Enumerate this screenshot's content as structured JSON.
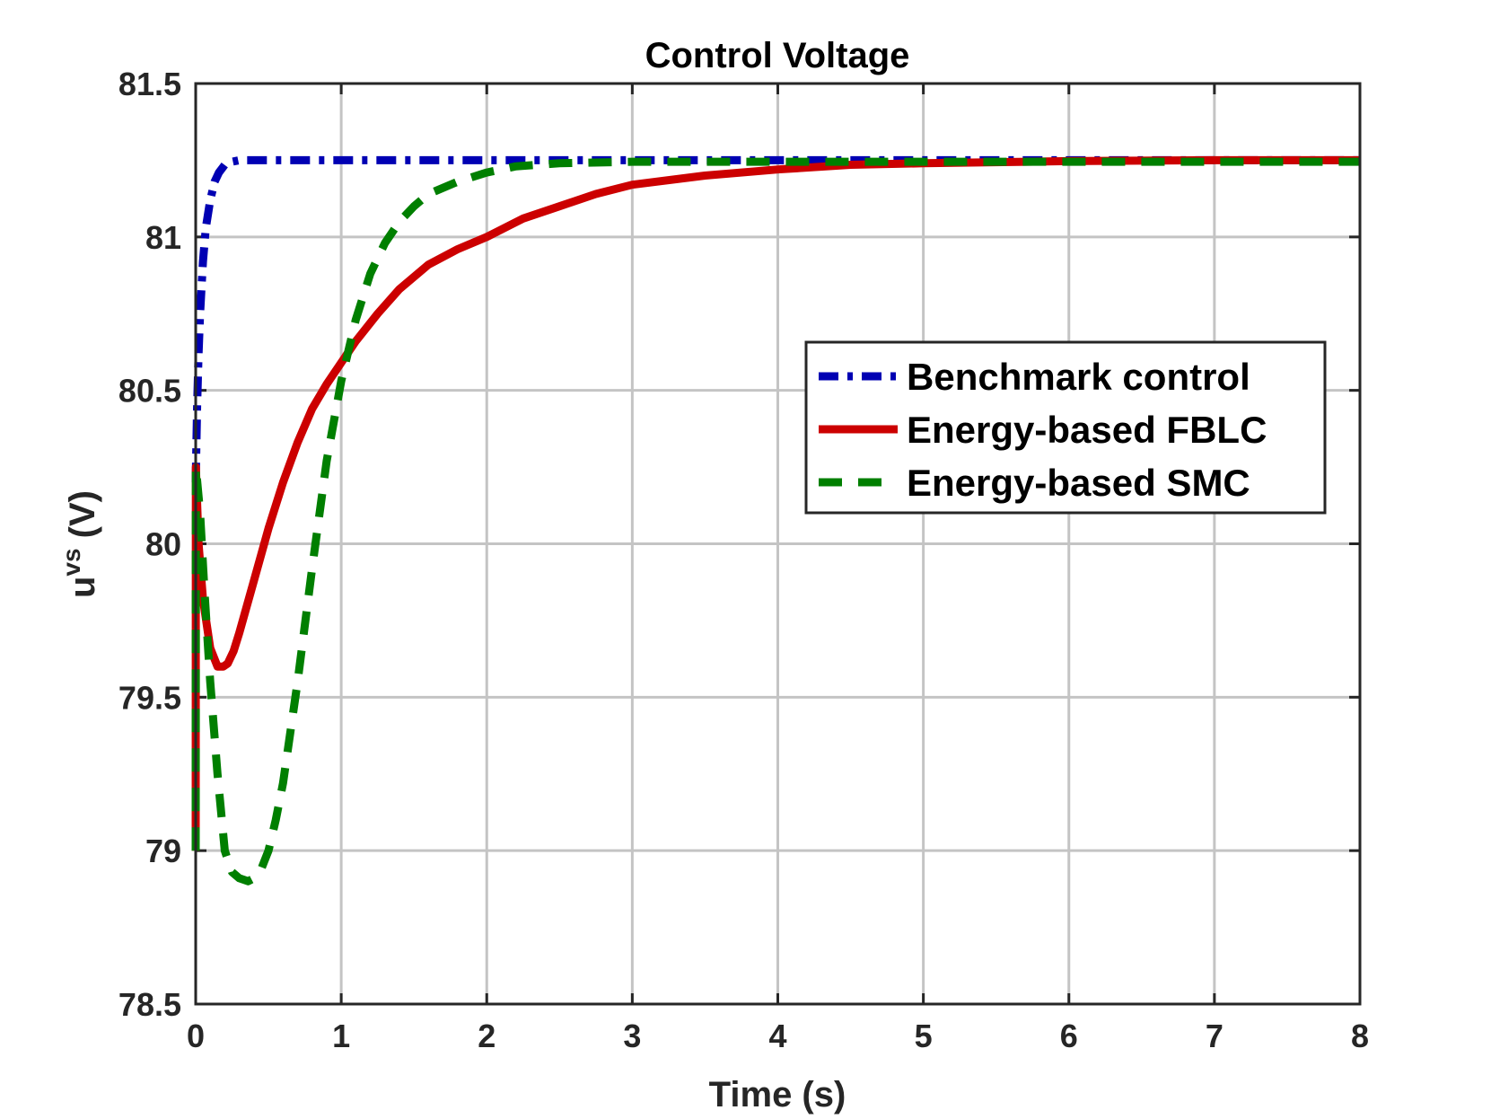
{
  "chart_data": {
    "type": "line",
    "title": "Control Voltage",
    "xlabel": "Time (s)",
    "ylabel_base": "u",
    "ylabel_sup": "vs",
    "ylabel_unit": "(V)",
    "xlim": [
      0,
      8
    ],
    "ylim": [
      78.5,
      81.5
    ],
    "xticks": [
      0,
      1,
      2,
      3,
      4,
      5,
      6,
      7,
      8
    ],
    "yticks": [
      78.5,
      79,
      79.5,
      80,
      80.5,
      81,
      81.5
    ],
    "xtick_labels": [
      "0",
      "1",
      "2",
      "3",
      "4",
      "5",
      "6",
      "7",
      "8"
    ],
    "ytick_labels": [
      "78.5",
      "79",
      "79.5",
      "80",
      "80.5",
      "81",
      "81.5"
    ],
    "grid": true,
    "legend_position": "right-middle",
    "series": [
      {
        "name": "Benchmark control",
        "color": "#0000b3",
        "style": "dash-dot",
        "x": [
          0,
          0.01,
          0.02,
          0.03,
          0.05,
          0.07,
          0.1,
          0.13,
          0.16,
          0.2,
          0.25,
          0.3,
          0.4,
          0.6,
          1,
          2,
          3,
          4,
          5,
          6,
          7,
          8
        ],
        "y": [
          80.2,
          80.45,
          80.62,
          80.75,
          80.92,
          81.03,
          81.12,
          81.18,
          81.21,
          81.235,
          81.245,
          81.25,
          81.25,
          81.25,
          81.25,
          81.25,
          81.25,
          81.25,
          81.25,
          81.25,
          81.25,
          81.25
        ]
      },
      {
        "name": "Energy-based FBLC",
        "color": "#cc0000",
        "style": "solid",
        "x": [
          0,
          0.001,
          0.02,
          0.05,
          0.1,
          0.15,
          0.19,
          0.22,
          0.26,
          0.3,
          0.4,
          0.5,
          0.6,
          0.7,
          0.8,
          0.9,
          1.0,
          1.1,
          1.25,
          1.4,
          1.6,
          1.8,
          2.0,
          2.25,
          2.5,
          2.75,
          3.0,
          3.5,
          4.0,
          4.5,
          5.0,
          6.0,
          7.0,
          8.0
        ],
        "y": [
          79.0,
          80.25,
          80.0,
          79.82,
          79.66,
          79.6,
          79.6,
          79.61,
          79.65,
          79.71,
          79.88,
          80.05,
          80.2,
          80.33,
          80.44,
          80.52,
          80.59,
          80.66,
          80.75,
          80.83,
          80.91,
          80.96,
          81.0,
          81.06,
          81.1,
          81.14,
          81.17,
          81.2,
          81.22,
          81.235,
          81.24,
          81.247,
          81.25,
          81.25
        ]
      },
      {
        "name": "Energy-based SMC",
        "color": "#007f00",
        "style": "dashed",
        "x": [
          0,
          0.001,
          0.03,
          0.06,
          0.1,
          0.15,
          0.2,
          0.25,
          0.3,
          0.36,
          0.4,
          0.45,
          0.5,
          0.55,
          0.6,
          0.7,
          0.8,
          0.9,
          1.0,
          1.1,
          1.2,
          1.3,
          1.4,
          1.5,
          1.6,
          1.8,
          2.0,
          2.2,
          2.5,
          3.0,
          4.0,
          5.0,
          6.0,
          7.0,
          8.0
        ],
        "y": [
          79.0,
          80.25,
          80.1,
          79.85,
          79.55,
          79.25,
          79.0,
          78.93,
          78.91,
          78.9,
          78.91,
          78.94,
          79.0,
          79.1,
          79.22,
          79.55,
          79.92,
          80.27,
          80.53,
          80.73,
          80.88,
          80.98,
          81.05,
          81.1,
          81.14,
          81.18,
          81.21,
          81.23,
          81.24,
          81.245,
          81.245,
          81.245,
          81.245,
          81.245,
          81.245
        ]
      }
    ]
  }
}
